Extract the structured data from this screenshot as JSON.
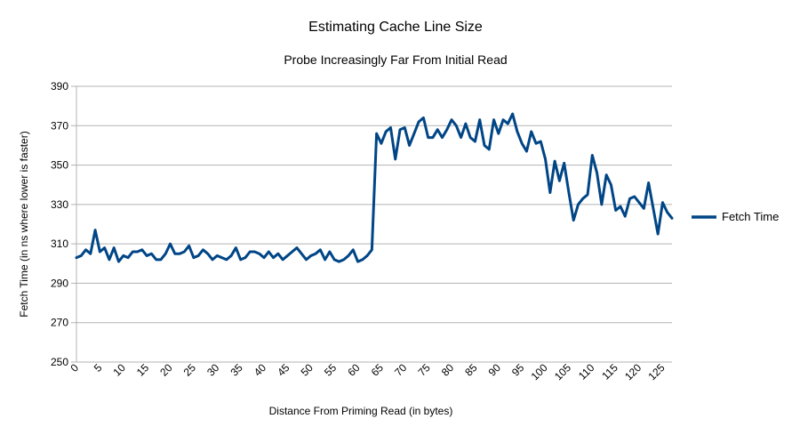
{
  "chart_data": {
    "type": "line",
    "title": "Estimating Cache Line Size",
    "subtitle": "Probe Increasingly Far From Initial Read",
    "xlabel": "Distance From Priming Read (in bytes)",
    "ylabel": "Fetch Time (in ns where lower is faster)",
    "ylim": [
      250,
      390
    ],
    "yticks": [
      250,
      270,
      290,
      310,
      330,
      350,
      370,
      390
    ],
    "xlim": [
      0,
      127
    ],
    "xticks": [
      0,
      5,
      10,
      15,
      20,
      25,
      30,
      35,
      40,
      45,
      50,
      55,
      60,
      65,
      70,
      75,
      80,
      85,
      90,
      95,
      100,
      105,
      110,
      115,
      120,
      125
    ],
    "grid": "horizontal",
    "legend_position": "right",
    "series": [
      {
        "name": "Fetch Time",
        "color": "#004586",
        "values": [
          303,
          304,
          307,
          305,
          317,
          306,
          308,
          302,
          308,
          301,
          304,
          303,
          306,
          306,
          307,
          304,
          305,
          302,
          302,
          305,
          310,
          305,
          305,
          306,
          309,
          303,
          304,
          307,
          305,
          302,
          304,
          303,
          302,
          304,
          308,
          302,
          303,
          306,
          306,
          305,
          303,
          306,
          303,
          305,
          302,
          304,
          306,
          308,
          305,
          302,
          304,
          305,
          307,
          302,
          306,
          302,
          301,
          302,
          304,
          307,
          301,
          302,
          304,
          307,
          366,
          361,
          367,
          369,
          353,
          368,
          369,
          360,
          366,
          372,
          374,
          364,
          364,
          368,
          364,
          368,
          373,
          370,
          364,
          371,
          364,
          362,
          373,
          360,
          358,
          373,
          366,
          373,
          371,
          376,
          367,
          361,
          357,
          367,
          361,
          362,
          353,
          336,
          352,
          342,
          351,
          336,
          322,
          330,
          333,
          335,
          355,
          346,
          330,
          345,
          340,
          327,
          329,
          324,
          333,
          334,
          331,
          328,
          341,
          328,
          315,
          331,
          326,
          323
        ]
      }
    ]
  }
}
